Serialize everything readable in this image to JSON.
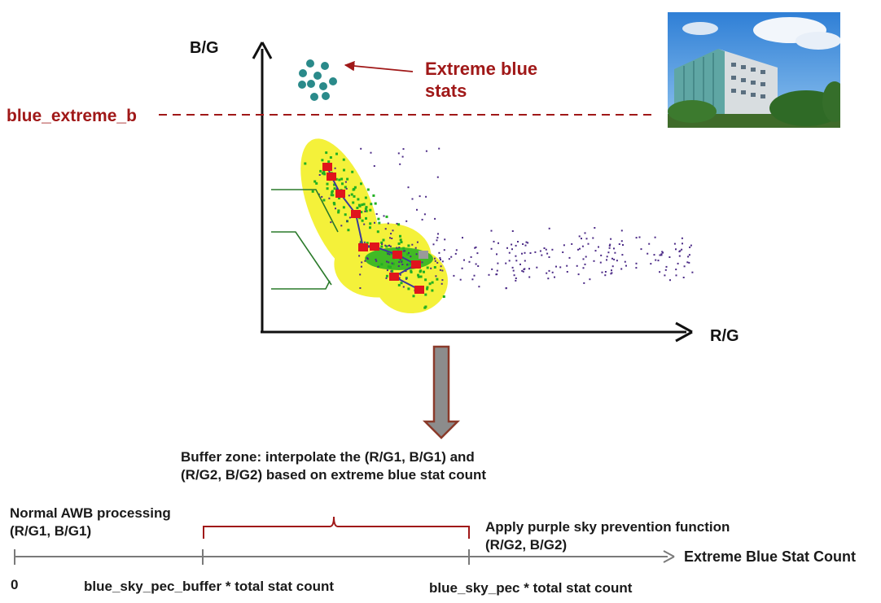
{
  "colors": {
    "axis": "#111111",
    "extreme_red": "#a01818",
    "cluster_yellow": "#f4f13a",
    "cluster_green": "#22b022",
    "scatter_purple": "#4b2a86",
    "marker_red": "#e0141c",
    "teal_dots": "#2a8a8a",
    "down_arrow_fill": "#8c8c8c",
    "down_arrow_stroke": "#8a3a2a",
    "timeline": "#7a7a7a",
    "bracket": "#a01818"
  },
  "plot": {
    "y_axis_label": "B/G",
    "x_axis_label": "R/G",
    "threshold_label": "blue_extreme_b",
    "annotation": {
      "line1": "Extreme blue",
      "line2": "stats"
    }
  },
  "photo": {
    "icon": "office-building-photo"
  },
  "buffer_note": {
    "line1": "Buffer zone: interpolate the (R/G1, B/G1) and",
    "line2": "(R/G2, B/G2) based on extreme blue stat count"
  },
  "timeline": {
    "axis_label": "Extreme Blue Stat Count",
    "left": {
      "line1": "Normal AWB processing",
      "line2": "(R/G1, B/G1)"
    },
    "right": {
      "line1": "Apply purple sky prevention function",
      "line2": "(R/G2, B/G2)"
    },
    "ticks": {
      "zero": "0",
      "buffer": "blue_sky_pec_buffer * total stat count",
      "pec": "blue_sky_pec * total stat count"
    }
  }
}
